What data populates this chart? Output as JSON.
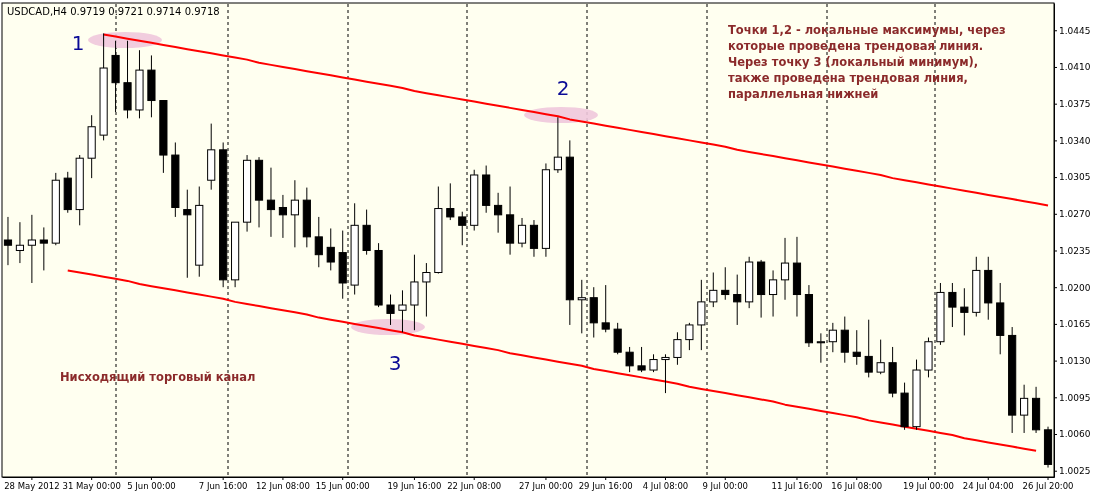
{
  "chart_data": {
    "type": "candlestick",
    "title": "USDCAD,H4  0.9719 0.9721 0.9714 0.9718",
    "color": "#000000",
    "categories": [
      null,
      null,
      "28 May 2012",
      null,
      null,
      null,
      null,
      "31 May 00:00",
      null,
      null,
      null,
      null,
      "5 Jun 00:00",
      null,
      null,
      null,
      null,
      null,
      "7 Jun 16:00",
      null,
      null,
      null,
      null,
      "12 Jun 08:00",
      null,
      null,
      null,
      null,
      "15 Jun 00:00",
      null,
      null,
      null,
      null,
      null,
      "19 Jun 16:00",
      null,
      null,
      null,
      null,
      "22 Jun 08:00",
      null,
      null,
      null,
      null,
      null,
      "27 Jun 00:00",
      null,
      null,
      null,
      null,
      "29 Jun 16:00",
      null,
      null,
      null,
      null,
      "4 Jul 08:00",
      null,
      null,
      null,
      null,
      "9 Jul 00:00",
      null,
      null,
      null,
      null,
      null,
      "11 Jul 16:00",
      null,
      null,
      null,
      null,
      "16 Jul 08:00",
      null,
      null,
      null,
      null,
      null,
      "19 Jul 00:00",
      null,
      null,
      null,
      null,
      "24 Jul 04:00",
      null,
      null,
      null,
      null,
      "26 Jul 20:00"
    ],
    "ohlc": [
      [
        1.0245,
        1.0267,
        1.0221,
        1.024
      ],
      [
        1.0235,
        1.0262,
        1.0223,
        1.024
      ],
      [
        1.024,
        1.0269,
        1.0204,
        1.0245
      ],
      [
        1.0245,
        1.0257,
        1.0216,
        1.0242
      ],
      [
        1.0242,
        1.0309,
        1.024,
        1.0302
      ],
      [
        1.0304,
        1.031,
        1.0271,
        1.0274
      ],
      [
        1.0274,
        1.0326,
        1.0259,
        1.0323
      ],
      [
        1.0323,
        1.0364,
        1.0304,
        1.0353
      ],
      [
        1.0345,
        1.0442,
        1.034,
        1.0409
      ],
      [
        1.0421,
        1.0435,
        1.0367,
        1.0395
      ],
      [
        1.0395,
        1.0435,
        1.0361,
        1.0369
      ],
      [
        1.0369,
        1.0426,
        1.0361,
        1.0407
      ],
      [
        1.0407,
        1.0421,
        1.0362,
        1.0378
      ],
      [
        1.0378,
        1.0378,
        1.0309,
        1.0326
      ],
      [
        1.0326,
        1.0338,
        1.0267,
        1.0276
      ],
      [
        1.0274,
        1.0293,
        1.0209,
        1.0269
      ],
      [
        1.0221,
        1.0296,
        1.021,
        1.0278
      ],
      [
        1.0302,
        1.0356,
        1.0293,
        1.0331
      ],
      [
        1.0331,
        1.0338,
        1.02,
        1.0207
      ],
      [
        1.0207,
        1.0262,
        1.02,
        1.0262
      ],
      [
        1.0262,
        1.0326,
        1.0253,
        1.0321
      ],
      [
        1.0321,
        1.0324,
        1.0257,
        1.0283
      ],
      [
        1.0283,
        1.0314,
        1.0248,
        1.0274
      ],
      [
        1.0276,
        1.0288,
        1.0247,
        1.0269
      ],
      [
        1.0269,
        1.0302,
        1.0238,
        1.0283
      ],
      [
        1.0283,
        1.0295,
        1.0238,
        1.0248
      ],
      [
        1.0248,
        1.0267,
        1.0219,
        1.0231
      ],
      [
        1.0238,
        1.0256,
        1.0216,
        1.0224
      ],
      [
        1.0233,
        1.0254,
        1.0189,
        1.0204
      ],
      [
        1.0202,
        1.028,
        1.0193,
        1.0259
      ],
      [
        1.0259,
        1.0274,
        1.0231,
        1.0235
      ],
      [
        1.0235,
        1.0242,
        1.0181,
        1.0183
      ],
      [
        1.0183,
        1.0193,
        1.0164,
        1.0175
      ],
      [
        1.0178,
        1.0197,
        1.0157,
        1.0183
      ],
      [
        1.0183,
        1.0231,
        1.0159,
        1.0205
      ],
      [
        1.0205,
        1.0223,
        1.0172,
        1.0214
      ],
      [
        1.0214,
        1.0296,
        1.0213,
        1.0275
      ],
      [
        1.0275,
        1.0299,
        1.0264,
        1.0267
      ],
      [
        1.0267,
        1.0272,
        1.024,
        1.0259
      ],
      [
        1.0259,
        1.0312,
        1.0254,
        1.0307
      ],
      [
        1.0307,
        1.0316,
        1.0271,
        1.0278
      ],
      [
        1.0278,
        1.029,
        1.0252,
        1.0269
      ],
      [
        1.0269,
        1.0296,
        1.0231,
        1.0242
      ],
      [
        1.0242,
        1.0266,
        1.0238,
        1.0259
      ],
      [
        1.0259,
        1.0264,
        1.0229,
        1.0237
      ],
      [
        1.0237,
        1.0318,
        1.0229,
        1.0312
      ],
      [
        1.0312,
        1.0362,
        1.0309,
        1.0324
      ],
      [
        1.0324,
        1.034,
        1.0164,
        1.0188
      ],
      [
        1.0188,
        1.0207,
        1.0156,
        1.019
      ],
      [
        1.019,
        1.02,
        1.0152,
        1.0166
      ],
      [
        1.0166,
        1.0202,
        1.0157,
        1.016
      ],
      [
        1.016,
        1.0166,
        1.0136,
        1.0138
      ],
      [
        1.0138,
        1.0143,
        1.0119,
        1.0125
      ],
      [
        1.0125,
        1.0143,
        1.0119,
        1.0121
      ],
      [
        1.0121,
        1.0136,
        1.0119,
        1.0131
      ],
      [
        1.0131,
        1.0136,
        1.0099,
        1.0133
      ],
      [
        1.0133,
        1.0157,
        1.0126,
        1.015
      ],
      [
        1.015,
        1.0166,
        1.014,
        1.0164
      ],
      [
        1.0164,
        1.0207,
        1.014,
        1.0186
      ],
      [
        1.0186,
        1.0214,
        1.0181,
        1.0197
      ],
      [
        1.0197,
        1.0219,
        1.0188,
        1.0193
      ],
      [
        1.0193,
        1.0212,
        1.0164,
        1.0186
      ],
      [
        1.0186,
        1.0229,
        1.018,
        1.0224
      ],
      [
        1.0224,
        1.0226,
        1.0171,
        1.0193
      ],
      [
        1.0193,
        1.0216,
        1.0172,
        1.0207
      ],
      [
        1.0207,
        1.0247,
        1.0188,
        1.0223
      ],
      [
        1.0223,
        1.0248,
        1.0172,
        1.0193
      ],
      [
        1.0193,
        1.0202,
        1.0143,
        1.0147
      ],
      [
        1.0147,
        1.0156,
        1.0128,
        1.0148
      ],
      [
        1.0148,
        1.0166,
        1.0138,
        1.0159
      ],
      [
        1.0159,
        1.0172,
        1.0128,
        1.0138
      ],
      [
        1.0138,
        1.0159,
        1.0126,
        1.0134
      ],
      [
        1.0134,
        1.0169,
        1.0114,
        1.0119
      ],
      [
        1.0119,
        1.015,
        1.0117,
        1.0128
      ],
      [
        1.0128,
        1.0143,
        1.0095,
        1.0099
      ],
      [
        1.0099,
        1.0109,
        1.0064,
        1.0067
      ],
      [
        1.0067,
        1.0131,
        1.0064,
        1.0121
      ],
      [
        1.0121,
        1.0152,
        1.0114,
        1.0148
      ],
      [
        1.0148,
        1.0204,
        1.0145,
        1.0195
      ],
      [
        1.0195,
        1.0204,
        1.0162,
        1.0181
      ],
      [
        1.0181,
        1.0199,
        1.0154,
        1.0176
      ],
      [
        1.0176,
        1.0229,
        1.0172,
        1.0216
      ],
      [
        1.0216,
        1.0229,
        1.0169,
        1.0185
      ],
      [
        1.0185,
        1.0204,
        1.0136,
        1.0154
      ],
      [
        1.0154,
        1.0162,
        1.0061,
        1.0078
      ],
      [
        1.0078,
        1.0107,
        1.0061,
        1.0094
      ],
      [
        1.0094,
        1.0105,
        1.0061,
        1.0064
      ],
      [
        1.0064,
        1.0067,
        1.0028,
        1.0031
      ]
    ],
    "series": [
      {
        "type": "line",
        "color": "#ff0000",
        "values": [
          null,
          null,
          null,
          null,
          null,
          null,
          null,
          null,
          1.0441,
          1.0439,
          1.0437,
          1.0435,
          1.0433,
          1.0431,
          1.0429,
          1.0427,
          1.0425,
          1.0423,
          1.0421,
          1.0419,
          1.0417,
          1.0414,
          1.0412,
          1.041,
          1.0408,
          1.0406,
          1.0404,
          1.0402,
          1.04,
          1.0398,
          1.0396,
          1.0394,
          1.0392,
          1.039,
          1.0387,
          1.0385,
          1.0383,
          1.0381,
          1.0379,
          1.0377,
          1.0375,
          1.0373,
          1.0371,
          1.0369,
          1.0367,
          1.0365,
          1.0363,
          1.036,
          1.0358,
          1.0356,
          1.0354,
          1.0352,
          1.035,
          1.0348,
          1.0346,
          1.0344,
          1.0342,
          1.034,
          1.0338,
          1.0336,
          1.0334,
          1.0331,
          1.0329,
          1.0327,
          1.0325,
          1.0323,
          1.0321,
          1.0319,
          1.0317,
          1.0315,
          1.0313,
          1.0311,
          1.0309,
          1.0307,
          1.0304,
          1.0302,
          1.03,
          1.0298,
          1.0296,
          1.0294,
          1.0292,
          1.029,
          1.0288,
          1.0286,
          1.0284,
          1.0282,
          1.028,
          1.0278
        ]
      },
      {
        "type": "line",
        "color": "#ff0000",
        "values": [
          null,
          null,
          null,
          null,
          null,
          1.0216,
          1.0214,
          1.0212,
          1.021,
          1.0208,
          1.0206,
          1.0203,
          1.0201,
          1.0199,
          1.0197,
          1.0195,
          1.0193,
          1.0191,
          1.0189,
          1.0186,
          1.0184,
          1.0182,
          1.018,
          1.0178,
          1.0176,
          1.0174,
          1.0171,
          1.0169,
          1.0167,
          1.0165,
          1.0163,
          1.0161,
          1.0159,
          1.0157,
          1.0154,
          1.0152,
          1.015,
          1.0148,
          1.0146,
          1.0144,
          1.0142,
          1.014,
          1.0137,
          1.0135,
          1.0133,
          1.0131,
          1.0129,
          1.0127,
          1.0125,
          1.0122,
          1.012,
          1.0118,
          1.0116,
          1.0114,
          1.0112,
          1.011,
          1.0108,
          1.0105,
          1.0103,
          1.0101,
          1.0099,
          1.0097,
          1.0095,
          1.0093,
          1.0091,
          1.0088,
          1.0086,
          1.0084,
          1.0082,
          1.008,
          1.0078,
          1.0076,
          1.0073,
          1.0071,
          1.0069,
          1.0067,
          1.0065,
          1.0063,
          1.0061,
          1.0059,
          1.0056,
          1.0054,
          1.0052,
          1.005,
          1.0048,
          1.0046,
          1.0044,
          null
        ]
      }
    ],
    "ylim": [
      1.0019,
      1.0471
    ],
    "yticks": [
      {
        "value": 1.0025,
        "label": "1.0025"
      },
      {
        "value": 1.006,
        "label": "1.0060"
      },
      {
        "value": 1.0095,
        "label": "1.0095"
      },
      {
        "value": 1.013,
        "label": "1.0130"
      },
      {
        "value": 1.0165,
        "label": "1.0165"
      },
      {
        "value": 1.02,
        "label": "1.0200"
      },
      {
        "value": 1.0235,
        "label": "1.0235"
      },
      {
        "value": 1.027,
        "label": "1.0270"
      },
      {
        "value": 1.0305,
        "label": "1.0305"
      },
      {
        "value": 1.034,
        "label": "1.0340"
      },
      {
        "value": 1.0375,
        "label": "1.0375"
      },
      {
        "value": 1.041,
        "label": "1.0410"
      },
      {
        "value": 1.0445,
        "label": "1.0445"
      }
    ],
    "annotations": [
      "1",
      "2",
      "3",
      "Точки 1,2 - локальные максимумы, через\nкоторые проведена трендовая линия.\nЧерез точку 3 (локальный минимум),\nтакже проведена трендовая линия,\nпараллельная нижней",
      "Нисходящий торговый канал"
    ]
  }
}
